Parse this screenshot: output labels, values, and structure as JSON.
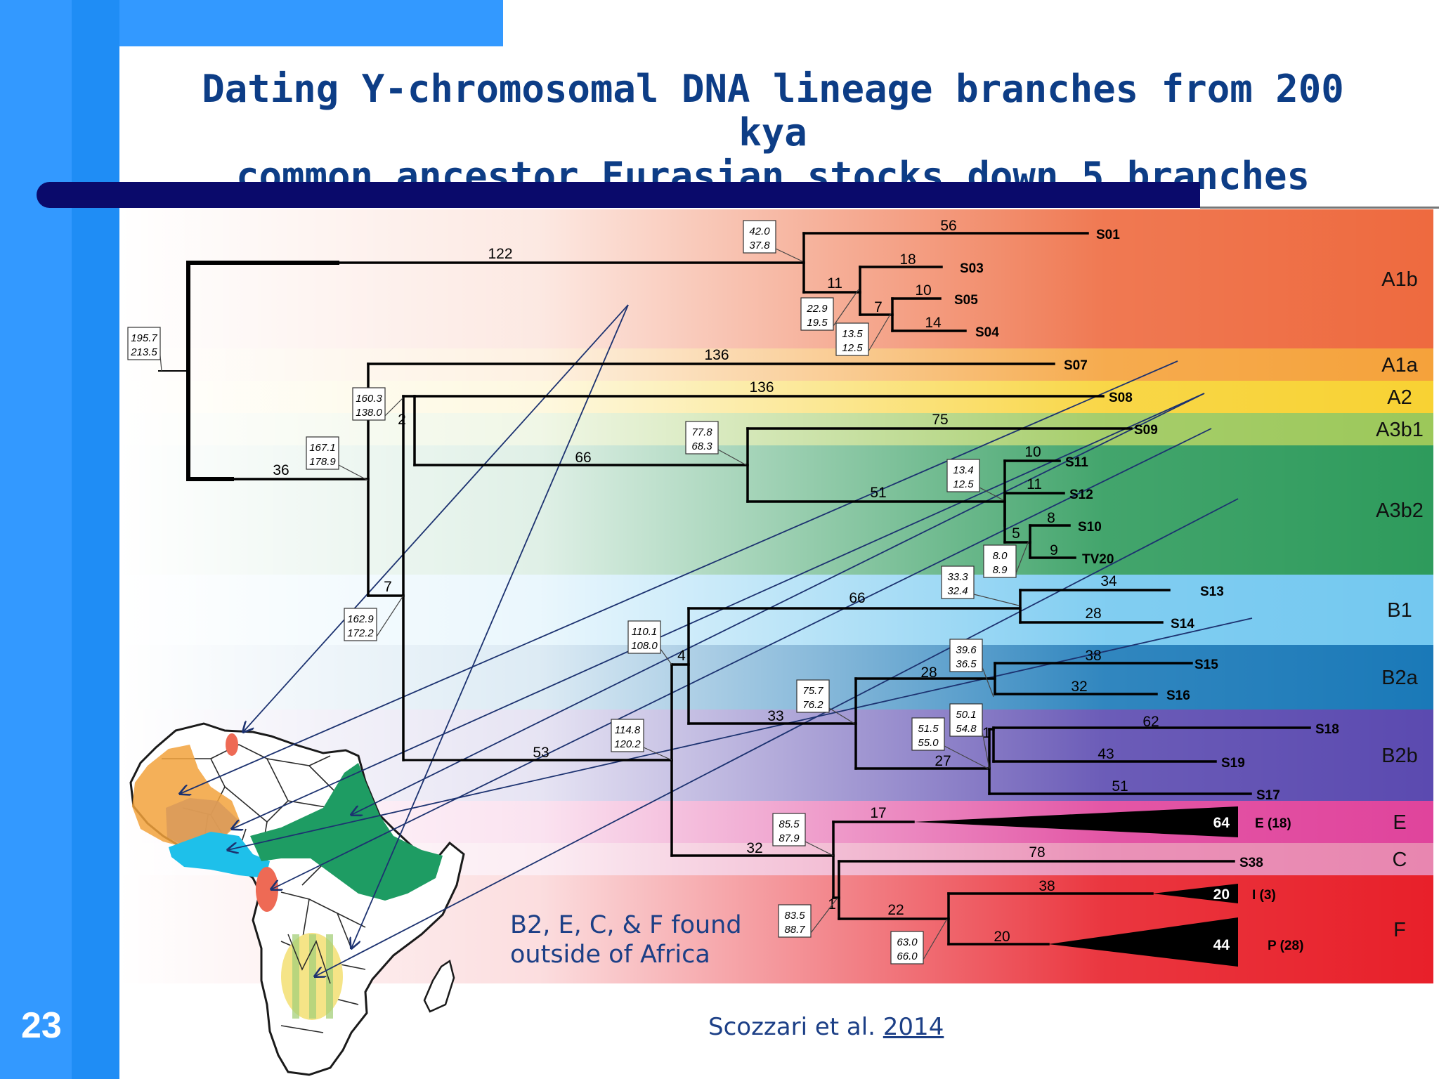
{
  "slide": {
    "number": "23",
    "title_line1": "Dating Y-chromosomal DNA lineage branches from 200 kya",
    "title_line2": "common ancestor Eurasian stocks down 5 branches",
    "note_line1": "B2, E, C, & F found",
    "note_line2": "outside of Africa",
    "citation_text": "Scozzari et al.",
    "citation_year": "2014"
  },
  "bands": [
    {
      "label": "A1b",
      "color": "#ee6a3f"
    },
    {
      "label": "A1a",
      "color": "#f5a23b"
    },
    {
      "label": "A2",
      "color": "#f8d233"
    },
    {
      "label": "A3b1",
      "color": "#9cc85a"
    },
    {
      "label": "A3b2",
      "color": "#2e9b5c"
    },
    {
      "label": "B1",
      "color": "#73c8f0"
    },
    {
      "label": "B2a",
      "color": "#1a79b8"
    },
    {
      "label": "B2b",
      "color": "#5b4ab0"
    },
    {
      "label": "E",
      "color": "#e0449c"
    },
    {
      "label": "C",
      "color": "#e886b0"
    },
    {
      "label": "F",
      "color": "#e8202a"
    }
  ],
  "tips": [
    "S01",
    "S03",
    "S05",
    "S04",
    "S07",
    "S08",
    "S09",
    "S11",
    "S12",
    "S10",
    "TV20",
    "S13",
    "S14",
    "S15",
    "S16",
    "S18",
    "S19",
    "S17",
    "E (18)",
    "S38",
    "I (3)",
    "P (28)"
  ],
  "collapsed_counts": [
    "64",
    "20",
    "44"
  ],
  "branch_lengths": [
    "122",
    "56",
    "18",
    "11",
    "10",
    "7",
    "14",
    "136",
    "136",
    "75",
    "66",
    "36",
    "2",
    "7",
    "10",
    "11",
    "51",
    "8",
    "5",
    "9",
    "34",
    "66",
    "28",
    "4",
    "38",
    "28",
    "32",
    "33",
    "62",
    "1",
    "43",
    "27",
    "51",
    "53",
    "17",
    "32",
    "78",
    "38",
    "1",
    "22",
    "20"
  ],
  "node_ages": [
    {
      "a": "195.7",
      "b": "213.5"
    },
    {
      "a": "42.0",
      "b": "37.8"
    },
    {
      "a": "22.9",
      "b": "19.5"
    },
    {
      "a": "13.5",
      "b": "12.5"
    },
    {
      "a": "160.3",
      "b": "138.0"
    },
    {
      "a": "167.1",
      "b": "178.9"
    },
    {
      "a": "77.8",
      "b": "68.3"
    },
    {
      "a": "13.4",
      "b": "12.5"
    },
    {
      "a": "8.0",
      "b": "8.9"
    },
    {
      "a": "33.3",
      "b": "32.4"
    },
    {
      "a": "162.9",
      "b": "172.2"
    },
    {
      "a": "110.1",
      "b": "108.0"
    },
    {
      "a": "39.6",
      "b": "36.5"
    },
    {
      "a": "75.7",
      "b": "76.2"
    },
    {
      "a": "50.1",
      "b": "54.8"
    },
    {
      "a": "51.5",
      "b": "55.0"
    },
    {
      "a": "114.8",
      "b": "120.2"
    },
    {
      "a": "85.5",
      "b": "87.9"
    },
    {
      "a": "83.5",
      "b": "88.7"
    },
    {
      "a": "63.0",
      "b": "66.0"
    }
  ],
  "map_colors": {
    "orange": "#f2a23c",
    "red": "#ee6a55",
    "cyan": "#1ec0ea",
    "green": "#1e9c63",
    "yellow": "#f5e487",
    "arrow": "#1c3270"
  }
}
